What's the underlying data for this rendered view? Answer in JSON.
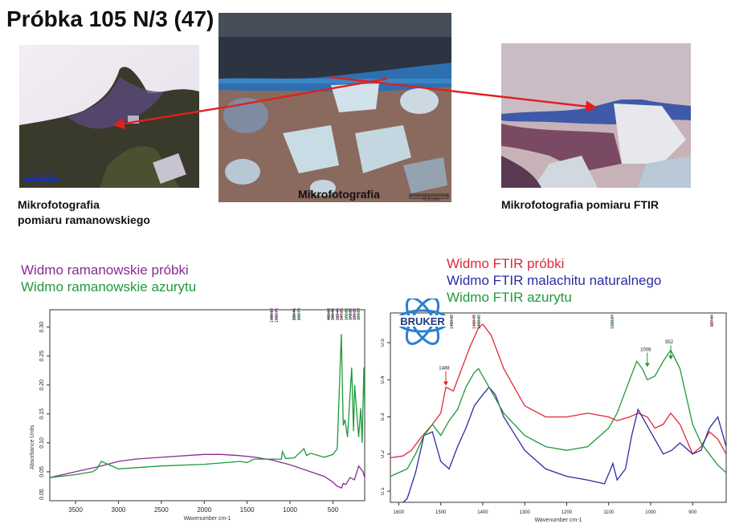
{
  "title": "Próbka 105 N/3 (47)",
  "photos": {
    "raman": {
      "caption_line1": "Mikrofotografia",
      "caption_line2": "pomiaru ramanowskiego",
      "scalebar": "50 µm"
    },
    "center": {
      "caption": "Mikrofotografia",
      "scalebar": "0.2 mm"
    },
    "ftir": {
      "caption": "Mikrofotografia pomiaru FTIR"
    }
  },
  "raman_legend": [
    {
      "label": "Widmo ramanowskie próbki",
      "color": "#8b2a9a"
    },
    {
      "label": "Widmo ramanowskie azurytu",
      "color": "#1f9a3a"
    }
  ],
  "ftir_legend": [
    {
      "label": "Widmo FTIR próbki",
      "color": "#e0283a"
    },
    {
      "label": "Widmo FTIR malachitu naturalnego",
      "color": "#2a2ea0"
    },
    {
      "label": "Widmo FTIR azurytu",
      "color": "#1f9a3a"
    }
  ],
  "bruker_logo": "BRUKER",
  "chart_data": [
    {
      "type": "line",
      "title": "",
      "xlabel": "Wavenumber cm-1",
      "ylabel": "Absorbance Units",
      "xlim": [
        3800,
        130
      ],
      "x_reversed": true,
      "xticks": [
        3500,
        3000,
        2500,
        2000,
        1500,
        1000,
        500
      ],
      "yticks": [
        0.05,
        0.1,
        0.15,
        0.2,
        0.25,
        0.3
      ],
      "ytick_labels": [
        "0.05",
        "0.10",
        "0.15",
        "0.20",
        "0.25",
        "0.30"
      ],
      "bottom_tick_label": "0.05",
      "peak_labels": [
        "1088.12",
        "1096.76",
        "838.45",
        "808.78",
        "402.03",
        "360.48",
        "282.40",
        "247.25",
        "176.25",
        "172.30",
        "139.32",
        "103.28"
      ],
      "series": [
        {
          "name": "Widmo ramanowskie próbki",
          "color": "#8b2a9a",
          "x": [
            3800,
            3500,
            3200,
            3000,
            2800,
            2500,
            2200,
            2000,
            1800,
            1600,
            1400,
            1200,
            1000,
            800,
            600,
            500,
            450,
            400,
            380,
            350,
            300,
            250,
            200,
            150,
            130
          ],
          "y": [
            0.04,
            0.05,
            0.06,
            0.068,
            0.072,
            0.075,
            0.078,
            0.08,
            0.08,
            0.078,
            0.075,
            0.07,
            0.062,
            0.052,
            0.042,
            0.032,
            0.025,
            0.022,
            0.03,
            0.028,
            0.04,
            0.036,
            0.06,
            0.05,
            0.04
          ]
        },
        {
          "name": "Widmo ramanowskie azurytu",
          "color": "#1f9a3a",
          "x": [
            3800,
            3500,
            3300,
            3250,
            3200,
            3000,
            2500,
            2000,
            1580,
            1500,
            1420,
            1100,
            1090,
            1050,
            950,
            838,
            808,
            760,
            600,
            500,
            450,
            402,
            380,
            360,
            330,
            282,
            260,
            247,
            200,
            176,
            160,
            139,
            130
          ],
          "y": [
            0.04,
            0.045,
            0.05,
            0.055,
            0.068,
            0.055,
            0.06,
            0.063,
            0.068,
            0.066,
            0.072,
            0.072,
            0.085,
            0.073,
            0.074,
            0.09,
            0.078,
            0.082,
            0.075,
            0.08,
            0.09,
            0.288,
            0.13,
            0.14,
            0.11,
            0.23,
            0.12,
            0.2,
            0.11,
            0.16,
            0.1,
            0.23,
            0.16
          ]
        }
      ]
    },
    {
      "type": "line",
      "title": "",
      "xlabel": "Wavenumber cm-1",
      "ylabel": "Absorbance Units",
      "xlim": [
        1620,
        820
      ],
      "x_reversed": true,
      "xticks": [
        1600,
        1500,
        1400,
        1300,
        1200,
        1100,
        1000,
        900
      ],
      "yticks": [
        0.1,
        0.2,
        0.3,
        0.4,
        0.5
      ],
      "ytick_labels": [
        "0.1",
        "0.2",
        "0.3",
        "0.4",
        "0.5"
      ],
      "peak_labels": [
        "1483.08",
        "1410.78",
        "1400.00",
        "1033.24",
        "827.44"
      ],
      "annotations": [
        {
          "label": "1488",
          "x": 1488,
          "y": 0.38
        },
        {
          "label": "1008",
          "x": 1008,
          "y": 0.43
        },
        {
          "label": "952",
          "x": 952,
          "y": 0.45
        }
      ],
      "series": [
        {
          "name": "Widmo FTIR próbki",
          "color": "#e0283a",
          "x": [
            1620,
            1590,
            1570,
            1550,
            1520,
            1500,
            1488,
            1470,
            1450,
            1430,
            1410,
            1400,
            1380,
            1350,
            1300,
            1250,
            1200,
            1150,
            1100,
            1080,
            1050,
            1030,
            1008,
            990,
            970,
            952,
            930,
            900,
            880,
            860,
            840,
            820
          ],
          "y": [
            0.19,
            0.195,
            0.21,
            0.24,
            0.28,
            0.31,
            0.38,
            0.37,
            0.43,
            0.49,
            0.54,
            0.55,
            0.52,
            0.43,
            0.33,
            0.3,
            0.3,
            0.31,
            0.3,
            0.29,
            0.3,
            0.31,
            0.3,
            0.27,
            0.28,
            0.31,
            0.28,
            0.2,
            0.22,
            0.26,
            0.24,
            0.2
          ]
        },
        {
          "name": "Widmo FTIR malachitu naturalnego",
          "color": "#2a2ea0",
          "x": [
            1620,
            1600,
            1580,
            1560,
            1540,
            1520,
            1500,
            1480,
            1460,
            1440,
            1420,
            1400,
            1385,
            1370,
            1350,
            1300,
            1250,
            1200,
            1150,
            1110,
            1095,
            1090,
            1080,
            1060,
            1045,
            1030,
            1010,
            990,
            970,
            950,
            930,
            900,
            880,
            860,
            840,
            820
          ],
          "y": [
            0.05,
            0.06,
            0.08,
            0.15,
            0.25,
            0.26,
            0.18,
            0.16,
            0.22,
            0.27,
            0.33,
            0.36,
            0.38,
            0.36,
            0.3,
            0.21,
            0.16,
            0.14,
            0.13,
            0.12,
            0.16,
            0.175,
            0.13,
            0.16,
            0.25,
            0.32,
            0.28,
            0.24,
            0.2,
            0.21,
            0.23,
            0.2,
            0.21,
            0.27,
            0.3,
            0.22
          ]
        },
        {
          "name": "Widmo FTIR azurytu",
          "color": "#1f9a3a",
          "x": [
            1620,
            1600,
            1580,
            1560,
            1540,
            1520,
            1500,
            1480,
            1460,
            1440,
            1420,
            1410,
            1400,
            1380,
            1350,
            1300,
            1250,
            1200,
            1150,
            1100,
            1080,
            1050,
            1033,
            1020,
            1008,
            990,
            970,
            952,
            930,
            900,
            880,
            860,
            840,
            820
          ],
          "y": [
            0.14,
            0.15,
            0.16,
            0.2,
            0.25,
            0.28,
            0.25,
            0.29,
            0.32,
            0.38,
            0.42,
            0.43,
            0.41,
            0.37,
            0.31,
            0.25,
            0.22,
            0.21,
            0.22,
            0.27,
            0.31,
            0.4,
            0.45,
            0.43,
            0.4,
            0.41,
            0.45,
            0.48,
            0.43,
            0.28,
            0.23,
            0.2,
            0.17,
            0.15
          ]
        }
      ]
    }
  ]
}
